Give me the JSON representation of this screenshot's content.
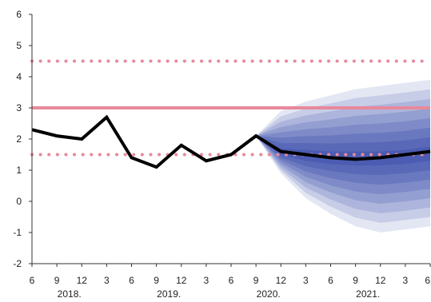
{
  "chart_data": {
    "type": "line",
    "title": "",
    "xlabel": "",
    "ylabel": "",
    "ylim": [
      -2,
      6
    ],
    "y_ticks": [
      -2,
      -1,
      0,
      1,
      2,
      3,
      4,
      5,
      6
    ],
    "x_tick_labels": [
      "6",
      "9",
      "12",
      "3",
      "6",
      "9",
      "12",
      "3",
      "6",
      "9",
      "12",
      "3",
      "6",
      "9",
      "12",
      "3",
      "6"
    ],
    "year_labels": [
      {
        "label": "2018.",
        "at_tick": 1.5
      },
      {
        "label": "2019.",
        "at_tick": 5.5
      },
      {
        "label": "2020.",
        "at_tick": 9.5
      },
      {
        "label": "2021.",
        "at_tick": 13.5
      }
    ],
    "grid": false,
    "colors": {
      "actual": "#000000",
      "target": "#e8899c",
      "band": "#e8899c",
      "fan": "#1a2f9e"
    },
    "target_line": 3.0,
    "tolerance_band": [
      1.5,
      4.5
    ],
    "series": [
      {
        "values": [
          2.3,
          2.1,
          2.0,
          2.7,
          1.4,
          1.1,
          1.8,
          1.3,
          1.5,
          2.1,
          1.6,
          1.5,
          1.4,
          1.35,
          1.4,
          1.5,
          1.6
        ],
        "forecast_start_index": 9
      }
    ],
    "fan": {
      "start_index": 9,
      "lower_outer": [
        2.1,
        0.9,
        0.1,
        -0.4,
        -0.8,
        -1.0,
        -0.9,
        -0.8
      ],
      "upper_outer": [
        2.1,
        2.9,
        3.2,
        3.4,
        3.6,
        3.7,
        3.8,
        3.9
      ],
      "lower_inner": [
        2.1,
        1.5,
        1.3,
        1.2,
        1.15,
        1.15,
        1.2,
        1.3
      ],
      "upper_inner": [
        2.1,
        1.7,
        1.65,
        1.6,
        1.6,
        1.6,
        1.65,
        1.75
      ],
      "layers": 8
    }
  }
}
